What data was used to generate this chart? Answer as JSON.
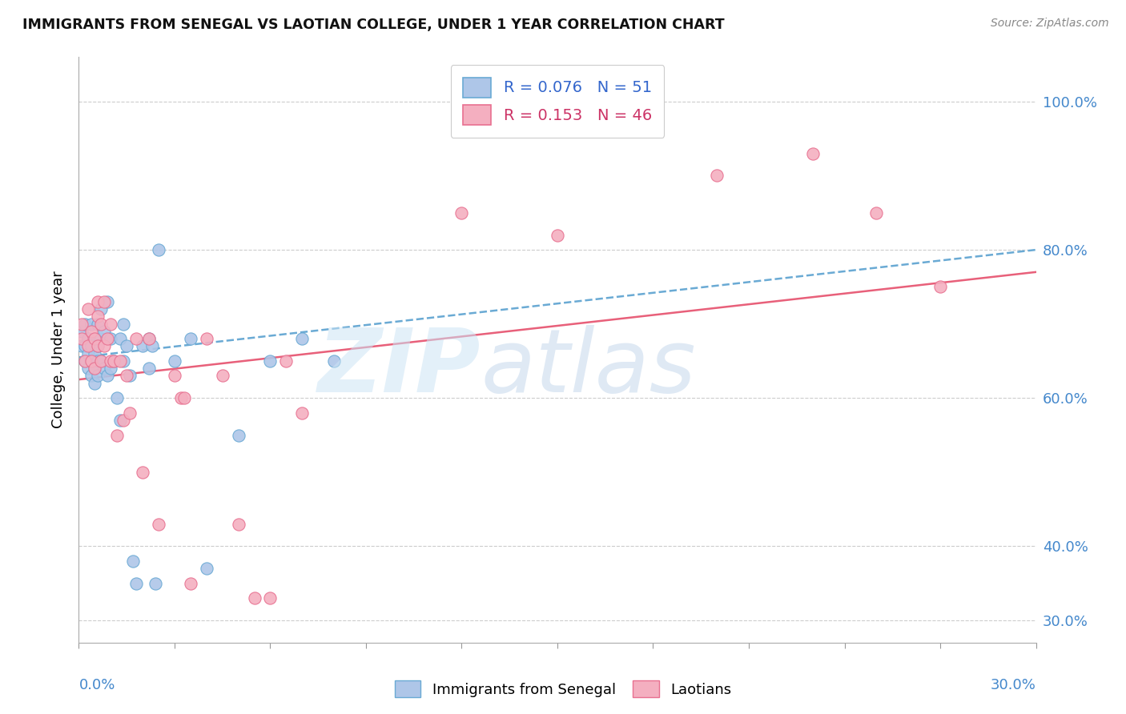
{
  "title": "IMMIGRANTS FROM SENEGAL VS LAOTIAN COLLEGE, UNDER 1 YEAR CORRELATION CHART",
  "source": "Source: ZipAtlas.com",
  "ylabel": "College, Under 1 year",
  "ytick_values": [
    0.3,
    0.4,
    0.6,
    0.8,
    1.0
  ],
  "ytick_labels": [
    "30.0%",
    "40.0%",
    "60.0%",
    "80.0%",
    "100.0%"
  ],
  "xtick_values": [
    0.0,
    0.03,
    0.06,
    0.09,
    0.12,
    0.15,
    0.18,
    0.21,
    0.24,
    0.27,
    0.3
  ],
  "xlim": [
    0.0,
    0.3
  ],
  "ylim": [
    0.27,
    1.06
  ],
  "legend1_R": "0.076",
  "legend1_N": "51",
  "legend2_R": "0.153",
  "legend2_N": "46",
  "color_blue": "#aec6e8",
  "color_pink": "#f4afc0",
  "edge_blue": "#6aaad4",
  "edge_pink": "#e87090",
  "line_blue_color": "#6aaad4",
  "line_pink_color": "#e8607a",
  "grid_color": "#cccccc",
  "senegal_x": [
    0.001,
    0.001,
    0.002,
    0.002,
    0.002,
    0.003,
    0.003,
    0.003,
    0.004,
    0.004,
    0.004,
    0.004,
    0.005,
    0.005,
    0.005,
    0.006,
    0.006,
    0.006,
    0.006,
    0.007,
    0.007,
    0.007,
    0.008,
    0.008,
    0.009,
    0.009,
    0.01,
    0.01,
    0.011,
    0.012,
    0.013,
    0.013,
    0.014,
    0.014,
    0.015,
    0.016,
    0.017,
    0.018,
    0.02,
    0.022,
    0.022,
    0.023,
    0.024,
    0.025,
    0.03,
    0.035,
    0.04,
    0.05,
    0.06,
    0.07,
    0.08
  ],
  "senegal_y": [
    0.67,
    0.69,
    0.65,
    0.67,
    0.7,
    0.64,
    0.66,
    0.68,
    0.63,
    0.65,
    0.67,
    0.7,
    0.62,
    0.64,
    0.66,
    0.63,
    0.65,
    0.67,
    0.7,
    0.65,
    0.68,
    0.72,
    0.64,
    0.69,
    0.63,
    0.73,
    0.64,
    0.68,
    0.65,
    0.6,
    0.57,
    0.68,
    0.65,
    0.7,
    0.67,
    0.63,
    0.38,
    0.35,
    0.67,
    0.64,
    0.68,
    0.67,
    0.35,
    0.8,
    0.65,
    0.68,
    0.37,
    0.55,
    0.65,
    0.68,
    0.65
  ],
  "laotian_x": [
    0.001,
    0.001,
    0.002,
    0.003,
    0.003,
    0.004,
    0.004,
    0.005,
    0.005,
    0.006,
    0.006,
    0.006,
    0.007,
    0.007,
    0.008,
    0.008,
    0.009,
    0.01,
    0.01,
    0.011,
    0.012,
    0.013,
    0.014,
    0.015,
    0.016,
    0.018,
    0.02,
    0.022,
    0.025,
    0.03,
    0.032,
    0.033,
    0.035,
    0.04,
    0.045,
    0.05,
    0.055,
    0.06,
    0.065,
    0.07,
    0.12,
    0.15,
    0.2,
    0.23,
    0.25,
    0.27
  ],
  "laotian_y": [
    0.68,
    0.7,
    0.65,
    0.67,
    0.72,
    0.65,
    0.69,
    0.64,
    0.68,
    0.67,
    0.71,
    0.73,
    0.65,
    0.7,
    0.67,
    0.73,
    0.68,
    0.65,
    0.7,
    0.65,
    0.55,
    0.65,
    0.57,
    0.63,
    0.58,
    0.68,
    0.5,
    0.68,
    0.43,
    0.63,
    0.6,
    0.6,
    0.35,
    0.68,
    0.63,
    0.43,
    0.33,
    0.33,
    0.65,
    0.58,
    0.85,
    0.82,
    0.9,
    0.93,
    0.85,
    0.75
  ],
  "senegal_trend_x": [
    0.0,
    0.3
  ],
  "senegal_trend_y": [
    0.655,
    0.8
  ],
  "laotian_trend_x": [
    0.0,
    0.3
  ],
  "laotian_trend_y": [
    0.625,
    0.77
  ]
}
